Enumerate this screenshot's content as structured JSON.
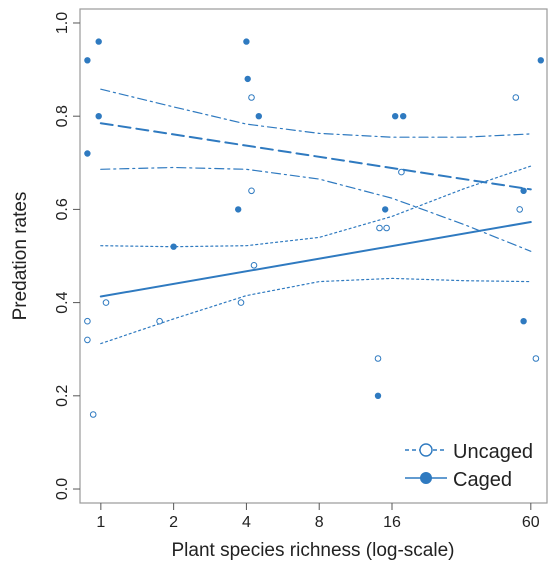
{
  "colors": {
    "series": "#2f7ac0",
    "frame": "#9a9a9a",
    "text": "#222222"
  },
  "chart_data": {
    "type": "scatter",
    "title": "",
    "xlabel": "Plant species richness (log-scale)",
    "ylabel": "Predation rates",
    "x_scale": "log2",
    "xlim": [
      0.82,
      70
    ],
    "ylim": [
      -0.03,
      1.03
    ],
    "x_ticks": [
      1,
      2,
      4,
      8,
      16,
      60
    ],
    "x_tick_labels": [
      "1",
      "2",
      "4",
      "8",
      "16",
      "60"
    ],
    "y_ticks": [
      0.0,
      0.2,
      0.4,
      0.6,
      0.8,
      1.0
    ],
    "y_tick_labels": [
      "0.0",
      "0.2",
      "0.4",
      "0.6",
      "0.8",
      "1.0"
    ],
    "grid": false,
    "legend_position": "bottom-right",
    "series": [
      {
        "name": "Uncaged",
        "marker": "open-circle",
        "line_style": "solid",
        "ci_style": "dotted",
        "points": [
          {
            "x": 0.88,
            "y": 0.36
          },
          {
            "x": 0.88,
            "y": 0.32
          },
          {
            "x": 0.93,
            "y": 0.16
          },
          {
            "x": 1.05,
            "y": 0.4
          },
          {
            "x": 1.75,
            "y": 0.36
          },
          {
            "x": 3.8,
            "y": 0.4
          },
          {
            "x": 4.2,
            "y": 0.84
          },
          {
            "x": 4.2,
            "y": 0.64
          },
          {
            "x": 4.3,
            "y": 0.48
          },
          {
            "x": 14.0,
            "y": 0.28
          },
          {
            "x": 14.2,
            "y": 0.56
          },
          {
            "x": 15.2,
            "y": 0.56
          },
          {
            "x": 17.5,
            "y": 0.68
          },
          {
            "x": 52.0,
            "y": 0.84
          },
          {
            "x": 54.0,
            "y": 0.6
          },
          {
            "x": 63.0,
            "y": 0.28
          }
        ],
        "fit": {
          "x": [
            1,
            60
          ],
          "y": [
            0.413,
            0.573
          ]
        },
        "ci_upper": {
          "x": [
            1,
            2,
            4,
            8,
            16,
            32,
            60
          ],
          "y": [
            0.522,
            0.52,
            0.522,
            0.54,
            0.585,
            0.645,
            0.693
          ]
        },
        "ci_lower": {
          "x": [
            1,
            2,
            4,
            8,
            16,
            32,
            60
          ],
          "y": [
            0.312,
            0.365,
            0.415,
            0.445,
            0.452,
            0.447,
            0.445
          ]
        }
      },
      {
        "name": "Caged",
        "marker": "filled-circle",
        "line_style": "dashed",
        "ci_style": "dash-dot",
        "points": [
          {
            "x": 0.88,
            "y": 0.92
          },
          {
            "x": 0.88,
            "y": 0.72
          },
          {
            "x": 0.98,
            "y": 0.96
          },
          {
            "x": 0.98,
            "y": 0.8
          },
          {
            "x": 2.0,
            "y": 0.52
          },
          {
            "x": 3.7,
            "y": 0.6
          },
          {
            "x": 4.0,
            "y": 0.96
          },
          {
            "x": 4.05,
            "y": 0.88
          },
          {
            "x": 4.5,
            "y": 0.8
          },
          {
            "x": 14.0,
            "y": 0.2
          },
          {
            "x": 15.0,
            "y": 0.6
          },
          {
            "x": 16.5,
            "y": 0.8
          },
          {
            "x": 17.8,
            "y": 0.8
          },
          {
            "x": 56.0,
            "y": 0.64
          },
          {
            "x": 56.0,
            "y": 0.36
          },
          {
            "x": 66.0,
            "y": 0.92
          }
        ],
        "fit": {
          "x": [
            1,
            60
          ],
          "y": [
            0.785,
            0.643
          ]
        },
        "ci_upper": {
          "x": [
            1,
            2,
            4,
            8,
            16,
            32,
            60
          ],
          "y": [
            0.858,
            0.82,
            0.783,
            0.763,
            0.755,
            0.755,
            0.762
          ]
        },
        "ci_lower": {
          "x": [
            1,
            2,
            4,
            8,
            16,
            32,
            60
          ],
          "y": [
            0.686,
            0.69,
            0.686,
            0.665,
            0.624,
            0.567,
            0.51
          ]
        }
      }
    ]
  }
}
